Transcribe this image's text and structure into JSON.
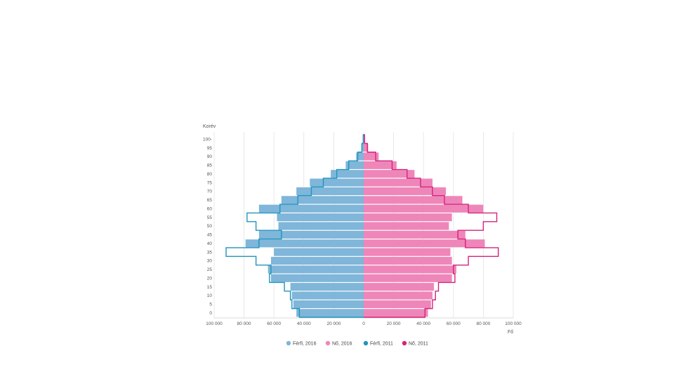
{
  "chart_data": {
    "type": "bar",
    "subtype": "population-pyramid",
    "orientation": "horizontal",
    "ylabel": "Korév",
    "xlabel": "Fő",
    "grid": true,
    "legend_position": "bottom",
    "xlim": [
      -100000,
      100000
    ],
    "ylim": [
      0,
      100
    ],
    "x_tick_labels": [
      "100 000",
      "80 000",
      "60 000",
      "40 000",
      "20 000",
      "0",
      "20 000",
      "40 000",
      "60 000",
      "80 000",
      "100 000"
    ],
    "y_tick_labels": [
      "0",
      "5",
      "10",
      "15",
      "20",
      "25",
      "30",
      "35",
      "40",
      "45",
      "50",
      "55",
      "60",
      "65",
      "70",
      "75",
      "80",
      "85",
      "90",
      "95",
      "100-"
    ],
    "age_groups": [
      0,
      5,
      10,
      15,
      20,
      25,
      30,
      35,
      40,
      45,
      50,
      55,
      60,
      65,
      70,
      75,
      80,
      85,
      90,
      95,
      100
    ],
    "series": [
      {
        "name": "Férfi, 2016",
        "side": "left",
        "style": "bar",
        "color": "#7fb6d9",
        "values": [
          45000,
          47000,
          48000,
          49000,
          62000,
          64000,
          62000,
          60000,
          79000,
          70000,
          57000,
          58000,
          70000,
          55000,
          45000,
          36000,
          22000,
          12000,
          5000,
          1500,
          300
        ]
      },
      {
        "name": "Nő, 2016",
        "side": "right",
        "style": "bar",
        "color": "#ef86b9",
        "values": [
          43000,
          45000,
          46000,
          47000,
          59000,
          62000,
          59000,
          58000,
          81000,
          68000,
          57000,
          59000,
          80000,
          66000,
          55000,
          46000,
          34000,
          22000,
          10000,
          3000,
          800
        ]
      },
      {
        "name": "Férfi, 2011",
        "side": "left",
        "style": "step-line",
        "color": "#1f95bd",
        "values": [
          43000,
          48000,
          49000,
          53000,
          63000,
          62000,
          72000,
          92000,
          70000,
          55000,
          72000,
          78000,
          56000,
          44000,
          35000,
          27000,
          18000,
          10000,
          4000,
          1200,
          300
        ]
      },
      {
        "name": "Nő, 2011",
        "side": "right",
        "style": "step-line",
        "color": "#d4237d",
        "values": [
          41000,
          46000,
          48000,
          50000,
          61000,
          60000,
          70000,
          90000,
          68000,
          63000,
          80000,
          89000,
          70000,
          54000,
          46000,
          38000,
          29000,
          19000,
          8000,
          2500,
          600
        ]
      }
    ]
  }
}
